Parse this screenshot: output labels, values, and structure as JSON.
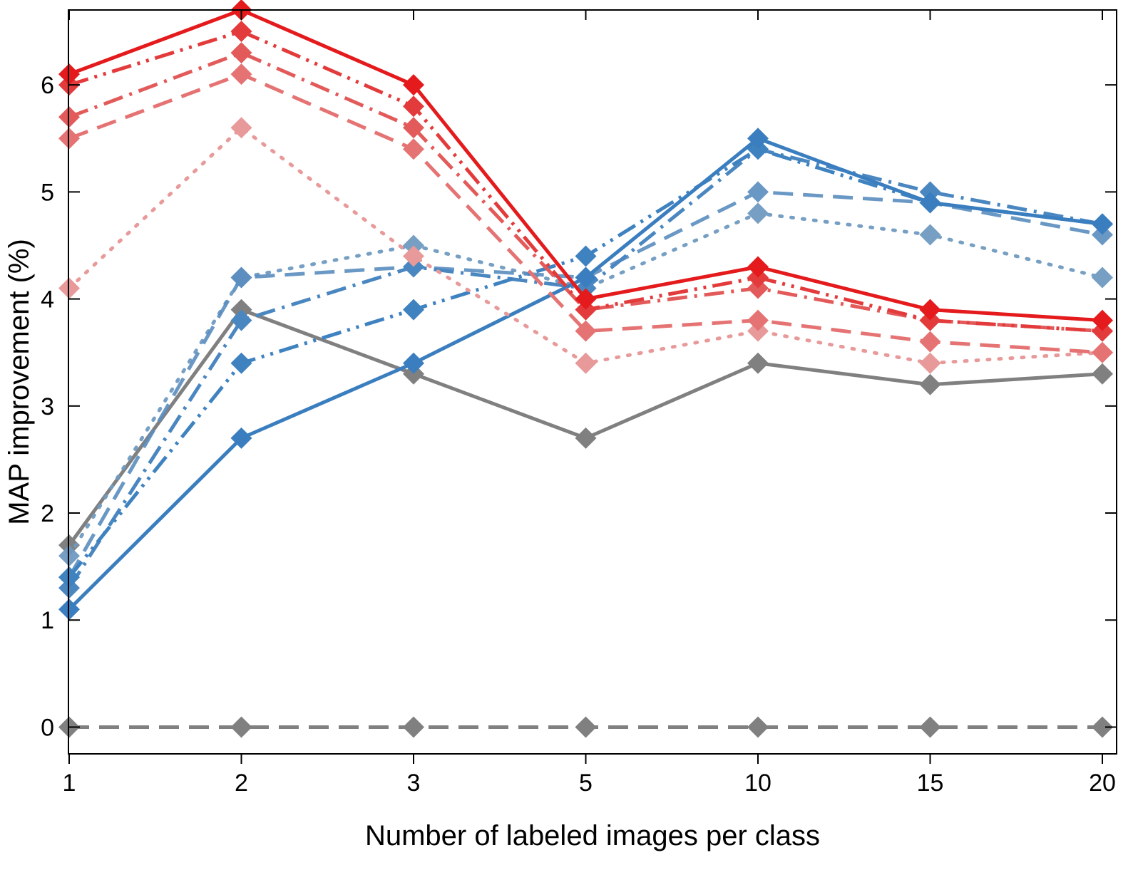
{
  "chart_data": {
    "type": "line",
    "title": "",
    "xlabel": "Number of labeled images per class",
    "ylabel": "MAP improvement (%)",
    "categories": [
      "1",
      "2",
      "3",
      "5",
      "10",
      "15",
      "20"
    ],
    "ylim": [
      -0.25,
      6.7
    ],
    "yticks": [
      0,
      1,
      2,
      3,
      4,
      5,
      6
    ],
    "grid": false,
    "legend": "none",
    "series": [
      {
        "name": "gray-dashed-baseline",
        "color": "#808080",
        "dash": "dashed",
        "opacity": 1,
        "values": [
          0,
          0,
          0,
          0,
          0,
          0,
          0
        ]
      },
      {
        "name": "gray-solid",
        "color": "#808080",
        "dash": "solid",
        "opacity": 1,
        "values": [
          1.7,
          3.9,
          3.3,
          2.7,
          3.4,
          3.2,
          3.3
        ]
      },
      {
        "name": "blue-dotted",
        "color": "#6f9ac0",
        "dash": "dotted",
        "opacity": 0.95,
        "values": [
          1.6,
          4.2,
          4.5,
          4.1,
          4.8,
          4.6,
          4.2
        ]
      },
      {
        "name": "blue-dashed",
        "color": "#5a8dbf",
        "dash": "dashed",
        "opacity": 0.9,
        "values": [
          1.4,
          4.2,
          4.3,
          4.2,
          5.0,
          4.9,
          4.6
        ]
      },
      {
        "name": "blue-dash-dot",
        "color": "#4a87c0",
        "dash": "dashdot",
        "opacity": 1,
        "values": [
          1.3,
          3.8,
          4.3,
          4.1,
          5.4,
          5.0,
          4.7
        ]
      },
      {
        "name": "blue-dash-dot-dot",
        "color": "#3f82c0",
        "dash": "dashdotdot",
        "opacity": 1,
        "values": [
          1.4,
          3.4,
          3.9,
          4.4,
          5.4,
          4.9,
          4.7
        ]
      },
      {
        "name": "blue-solid",
        "color": "#3a7ebf",
        "dash": "solid",
        "opacity": 1,
        "values": [
          1.1,
          2.7,
          3.4,
          4.2,
          5.5,
          4.9,
          4.7
        ]
      },
      {
        "name": "red-dotted",
        "color": "#e89a9a",
        "dash": "dotted",
        "opacity": 1,
        "values": [
          4.1,
          5.6,
          4.4,
          3.4,
          3.7,
          3.4,
          3.5
        ]
      },
      {
        "name": "red-dashed",
        "color": "#e57373",
        "dash": "dashed",
        "opacity": 1,
        "values": [
          5.5,
          6.1,
          5.4,
          3.7,
          3.8,
          3.6,
          3.5
        ]
      },
      {
        "name": "red-dash-dot",
        "color": "#e35a5a",
        "dash": "dashdot",
        "opacity": 1,
        "values": [
          5.7,
          6.3,
          5.6,
          3.9,
          4.1,
          3.8,
          3.7
        ]
      },
      {
        "name": "red-dash-dot-dot",
        "color": "#e33b3b",
        "dash": "dashdotdot",
        "opacity": 1,
        "values": [
          6.0,
          6.5,
          5.8,
          3.9,
          4.2,
          3.8,
          3.7
        ]
      },
      {
        "name": "red-solid",
        "color": "#e41a1c",
        "dash": "solid",
        "opacity": 1,
        "values": [
          6.1,
          6.7,
          6.0,
          4.0,
          4.3,
          3.9,
          3.8
        ]
      }
    ]
  }
}
